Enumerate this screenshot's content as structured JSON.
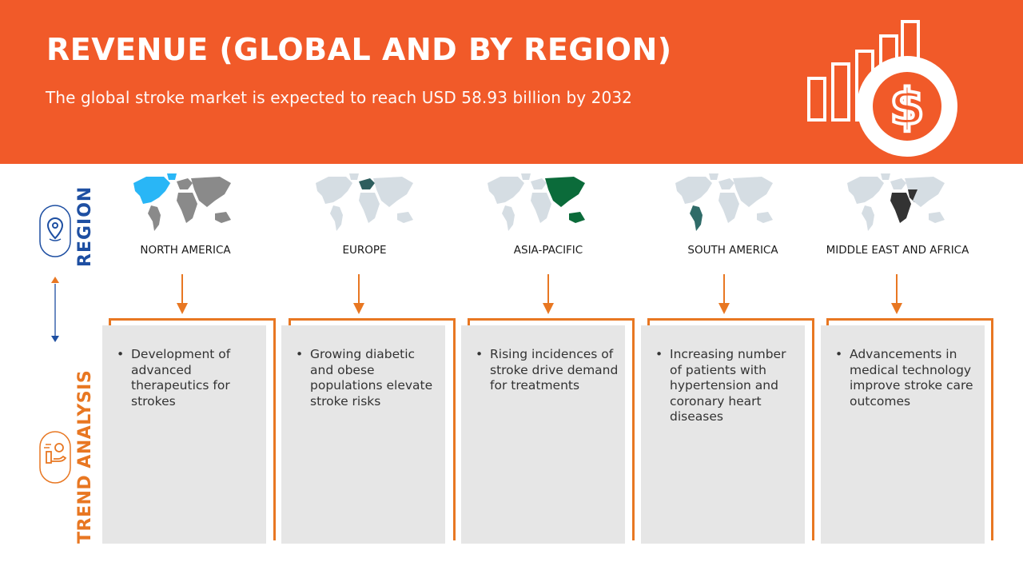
{
  "header": {
    "title": "REVENUE (GLOBAL AND BY REGION)",
    "subtitle": "The global stroke market is expected to reach USD 58.93 billion by 2032"
  },
  "side_labels": {
    "region": "REGION",
    "trend": "TREND ANALYSIS"
  },
  "colors": {
    "header_bg": "#f15a29",
    "region_blue": "#1e4fa2",
    "trend_orange": "#e87722",
    "card_bg": "#e6e6e6",
    "map_base": "#d5dde3",
    "north_america_highlight": "#29b6f6",
    "europe_highlight": "#2e5e5e",
    "asia_pacific_highlight": "#0b6b3a",
    "south_america_highlight": "#2f6b68",
    "mea_highlight": "#333333"
  },
  "regions": [
    {
      "name": "NORTH AMERICA",
      "map_icon": "world-map-north-america-highlighted",
      "trend": "Development of advanced therapeutics for strokes"
    },
    {
      "name": "EUROPE",
      "map_icon": "world-map-europe-highlighted",
      "trend": "Growing diabetic and obese populations elevate stroke risks"
    },
    {
      "name": "ASIA-PACIFIC",
      "map_icon": "world-map-asia-pacific-highlighted",
      "trend": "Rising incidences of stroke drive demand for treatments"
    },
    {
      "name": "SOUTH AMERICA",
      "map_icon": "world-map-south-america-highlighted",
      "trend": "Increasing number of patients with hypertension and coronary heart diseases"
    },
    {
      "name": "MIDDLE EAST AND AFRICA",
      "map_icon": "world-map-mea-highlighted",
      "trend": "Advancements in medical technology improve stroke care outcomes"
    }
  ],
  "icons": {
    "header": "revenue-growth-dollar-icon",
    "region": "location-pin-icon",
    "trend": "hand-money-icon"
  }
}
